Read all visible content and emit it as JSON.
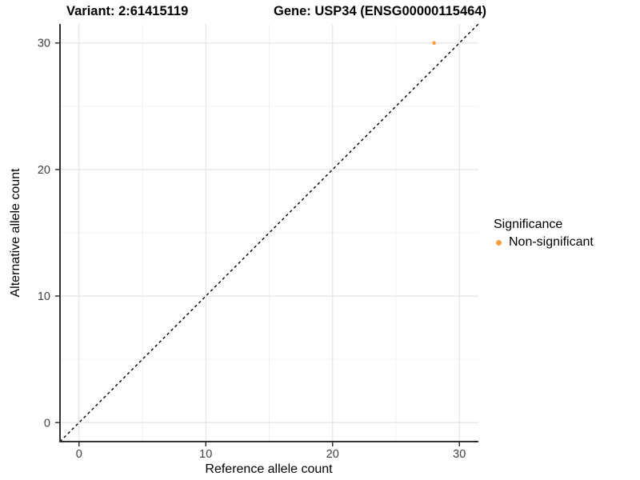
{
  "chart_data": {
    "type": "scatter",
    "titles": {
      "variant": "Variant: 2:61415119",
      "gene": "Gene: USP34 (ENSG00000115464)"
    },
    "xlabel": "Reference allele count",
    "ylabel": "Alternative allele count",
    "xlim": [
      -1.5,
      31.5
    ],
    "ylim": [
      -1.5,
      31.5
    ],
    "x_ticks": [
      0,
      10,
      20,
      30
    ],
    "y_ticks": [
      0,
      10,
      20,
      30
    ],
    "grid": {
      "major": true,
      "minor": true
    },
    "points": [
      {
        "x": 28,
        "y": 30,
        "series": "Non-significant"
      }
    ],
    "reference_line": {
      "kind": "identity y=x",
      "style": "dashed",
      "color": "#000000"
    },
    "legend": {
      "position": "right",
      "title": "Significance",
      "items": [
        {
          "label": "Non-significant",
          "color": "#F9A03F",
          "marker": "circle"
        }
      ]
    },
    "colors": {
      "point": "#F9A03F",
      "grid_major": "#E4E4E4",
      "grid_minor": "#F1F1F1",
      "axis_line": "#333333",
      "tick_text": "#404040",
      "background": "#FFFFFF"
    }
  }
}
